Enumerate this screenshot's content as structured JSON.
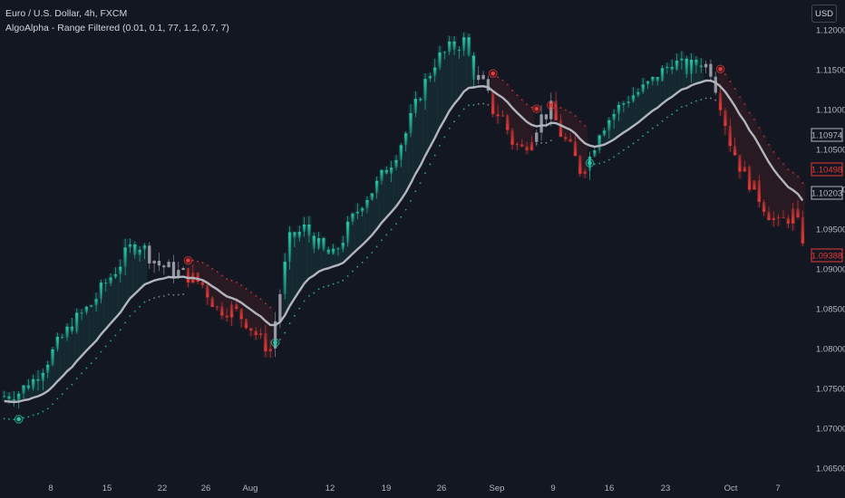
{
  "header": {
    "symbol_title": "Euro / U.S. Dollar, 4h, FXCM",
    "indicator_title": "AlgoAlpha - Range Filtered (0.01, 0.1, 77, 1.2, 0.7, 7)",
    "currency_button": "USD"
  },
  "colors": {
    "background": "#131722",
    "bull": "#26c6a6",
    "bear": "#e53935",
    "neutral": "#9598a1",
    "mid_line": "#b2b5be",
    "axis_text": "#b2b5be"
  },
  "chart_data": {
    "type": "candlestick",
    "title": "",
    "y_axis": {
      "ticks": [
        1.12,
        1.115,
        1.11,
        1.105,
        1.1,
        1.095,
        1.09,
        1.085,
        1.08,
        1.075,
        1.07,
        1.065
      ],
      "range": [
        1.0635,
        1.1235
      ]
    },
    "x_axis": {
      "ticks": [
        "8",
        "15",
        "22",
        "26",
        "Aug",
        "12",
        "19",
        "26",
        "Sep",
        "9",
        "16",
        "23",
        "Oct",
        "7"
      ]
    },
    "price_labels": [
      {
        "value": "1.10974",
        "color": "#b2b5be",
        "style": "outline"
      },
      {
        "value": "1.10498",
        "color": "#e53935",
        "style": "outline"
      },
      {
        "value": "1.10203",
        "color": "#b2b5be",
        "style": "outline"
      },
      {
        "value": "1.09388",
        "color": "#e53935",
        "style": "outline"
      }
    ],
    "price_path": [
      [
        0,
        1.074
      ],
      [
        3,
        1.0745
      ],
      [
        6,
        1.076
      ],
      [
        10,
        1.0795
      ],
      [
        14,
        1.083
      ],
      [
        18,
        1.0855
      ],
      [
        22,
        1.089
      ],
      [
        26,
        1.0925
      ],
      [
        28,
        1.093
      ],
      [
        32,
        1.0905
      ],
      [
        36,
        1.0895
      ],
      [
        38,
        1.0892
      ],
      [
        41,
        1.088
      ],
      [
        44,
        1.085
      ],
      [
        47,
        1.085
      ],
      [
        50,
        1.0835
      ],
      [
        53,
        1.081
      ],
      [
        55,
        1.08
      ],
      [
        57,
        1.087
      ],
      [
        59,
        1.0935
      ],
      [
        62,
        1.095
      ],
      [
        66,
        1.092
      ],
      [
        68,
        1.0915
      ],
      [
        71,
        1.095
      ],
      [
        74,
        1.0985
      ],
      [
        77,
        1.1005
      ],
      [
        80,
        1.1035
      ],
      [
        83,
        1.107
      ],
      [
        86,
        1.112
      ],
      [
        89,
        1.116
      ],
      [
        92,
        1.1175
      ],
      [
        95,
        1.1185
      ],
      [
        97,
        1.1145
      ],
      [
        99,
        1.113
      ],
      [
        101,
        1.11
      ],
      [
        103,
        1.109
      ],
      [
        105,
        1.106
      ],
      [
        107,
        1.105
      ],
      [
        109,
        1.107
      ],
      [
        111,
        1.109
      ],
      [
        113,
        1.11
      ],
      [
        115,
        1.107
      ],
      [
        117,
        1.105
      ],
      [
        119,
        1.1025
      ],
      [
        121,
        1.104
      ],
      [
        123,
        1.1075
      ],
      [
        126,
        1.1095
      ],
      [
        129,
        1.1115
      ],
      [
        132,
        1.1125
      ],
      [
        135,
        1.114
      ],
      [
        138,
        1.116
      ],
      [
        141,
        1.115
      ],
      [
        144,
        1.116
      ],
      [
        146,
        1.115
      ],
      [
        148,
        1.111
      ],
      [
        150,
        1.106
      ],
      [
        152,
        1.103
      ],
      [
        155,
        1.1
      ],
      [
        158,
        1.097
      ],
      [
        160,
        1.0955
      ],
      [
        163,
        1.097
      ],
      [
        165,
        1.0939
      ]
    ],
    "trend_segments": [
      {
        "from": 0,
        "to": 30,
        "trend": "bull"
      },
      {
        "from": 30,
        "to": 38,
        "trend": "neutral"
      },
      {
        "from": 38,
        "to": 56,
        "trend": "bear"
      },
      {
        "from": 56,
        "to": 58,
        "trend": "neutral"
      },
      {
        "from": 58,
        "to": 98,
        "trend": "bull"
      },
      {
        "from": 98,
        "to": 101,
        "trend": "neutral"
      },
      {
        "from": 101,
        "to": 110,
        "trend": "bear"
      },
      {
        "from": 110,
        "to": 114,
        "trend": "neutral"
      },
      {
        "from": 114,
        "to": 121,
        "trend": "bear"
      },
      {
        "from": 121,
        "to": 145,
        "trend": "bull"
      },
      {
        "from": 145,
        "to": 148,
        "trend": "neutral"
      },
      {
        "from": 148,
        "to": 166,
        "trend": "bear"
      }
    ],
    "signals": [
      {
        "i": 3,
        "type": "bull"
      },
      {
        "i": 38,
        "type": "bear"
      },
      {
        "i": 56,
        "type": "bull"
      },
      {
        "i": 101,
        "type": "bear"
      },
      {
        "i": 110,
        "type": "bear"
      },
      {
        "i": 113,
        "type": "bear"
      },
      {
        "i": 121,
        "type": "bull"
      },
      {
        "i": 148,
        "type": "bear"
      }
    ]
  }
}
